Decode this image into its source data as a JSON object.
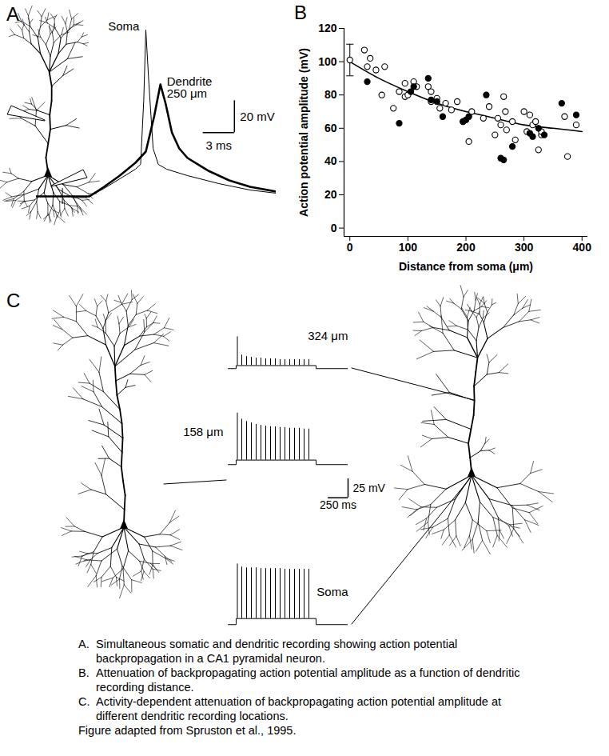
{
  "chart_data": [
    {
      "panel": "A",
      "type": "line",
      "tick_labels": false,
      "xlim": [
        -2.5,
        20.5
      ],
      "ylim": [
        -5,
        110
      ],
      "stimulus_time": 0,
      "series": [
        {
          "name": "Soma",
          "color": "#000000",
          "line_style": "thin",
          "x": [
            -2.5,
            2.6,
            4,
            5.5,
            7,
            7.5,
            7.8,
            8,
            8.3,
            8.7,
            9.2,
            10,
            12,
            15,
            18,
            20.5
          ],
          "values": [
            0,
            0,
            5,
            11,
            17,
            20,
            60,
            104,
            70,
            30,
            20,
            17,
            13,
            8,
            4,
            2
          ]
        },
        {
          "name": "Dendrite\n250 μm",
          "color": "#000000",
          "line_style": "bold",
          "x": [
            -2.5,
            2.6,
            4,
            5.5,
            7,
            8,
            8.8,
            9.4,
            9.9,
            10.5,
            11.2,
            12,
            14,
            16,
            18,
            20.5
          ],
          "values": [
            0,
            0,
            6,
            13,
            21,
            28,
            50,
            70,
            58,
            40,
            30,
            24,
            16,
            10,
            6,
            3
          ]
        }
      ],
      "scale_bar": {
        "x": 3,
        "x_label": "3 ms",
        "y": 20,
        "y_label": "20 mV"
      }
    },
    {
      "panel": "B",
      "type": "scatter",
      "x_label": "Distance from soma (μm)",
      "y_label": "Action potential amplitude (mV)",
      "xlim": [
        -10,
        410
      ],
      "ylim": [
        -5,
        120
      ],
      "xticks": [
        0,
        100,
        200,
        300,
        400
      ],
      "yticks": [
        0,
        20,
        40,
        60,
        80,
        100,
        120
      ],
      "grid": false,
      "series": [
        {
          "type": "line",
          "color": "#000000",
          "line_style": "solid",
          "x": [
            0,
            50,
            100,
            150,
            200,
            250,
            300,
            350,
            400
          ],
          "values": [
            100,
            90,
            82,
            75,
            70,
            66,
            62,
            60,
            58
          ]
        },
        {
          "type": "scatter",
          "marker": "open",
          "color": "#000000",
          "x": [
            25,
            30,
            35,
            45,
            55,
            60,
            75,
            85,
            95,
            95,
            100,
            110,
            115,
            135,
            140,
            140,
            150,
            155,
            165,
            175,
            185,
            195,
            205,
            210,
            230,
            240,
            250,
            255,
            260,
            265,
            268,
            270,
            280,
            285,
            300,
            305,
            310,
            315,
            320,
            325,
            330,
            330,
            370,
            375,
            390
          ],
          "values": [
            107,
            97,
            102,
            95,
            80,
            97,
            72,
            82,
            87,
            79,
            80,
            88,
            85,
            85,
            82,
            76,
            78,
            72,
            75,
            71,
            76,
            64,
            52,
            70,
            66,
            73,
            56,
            66,
            62,
            79,
            70,
            59,
            64,
            53,
            70,
            58,
            68,
            62,
            64,
            47,
            56,
            58,
            67,
            43,
            62
          ]
        },
        {
          "type": "scatter",
          "marker": "filled",
          "color": "#000000",
          "x": [
            30,
            85,
            105,
            110,
            135,
            140,
            150,
            160,
            195,
            200,
            205,
            235,
            260,
            265,
            280,
            310,
            315,
            325,
            335,
            365,
            390
          ],
          "values": [
            88,
            63,
            82,
            85,
            90,
            77,
            76,
            67,
            64,
            65,
            67,
            80,
            42,
            41,
            49,
            57,
            55,
            60,
            56,
            75,
            68
          ]
        },
        {
          "type": "scatter",
          "marker": "open",
          "color": "#000000",
          "x": [
            0
          ],
          "values": [
            101
          ],
          "error": [
            9.5
          ]
        }
      ]
    },
    {
      "panel": "C",
      "type": "spike_train",
      "tick_labels": false,
      "xlim": [
        -100,
        1400
      ],
      "ylim": [
        -5,
        90
      ],
      "baseline": 0,
      "step": [
        0,
        1000
      ],
      "series": [
        {
          "name": "324 μm",
          "color": "#000000",
          "plateau": 4,
          "x": [
            15,
            70,
            130,
            190,
            250,
            310,
            370,
            430,
            490,
            550,
            610,
            670,
            730,
            790,
            850,
            910
          ],
          "values": [
            42,
            18,
            16,
            15,
            14,
            14,
            13,
            13,
            13,
            12,
            12,
            12,
            12,
            12,
            12,
            12
          ]
        },
        {
          "name": "158 μm",
          "color": "#000000",
          "plateau": 6,
          "x": [
            15,
            70,
            130,
            190,
            250,
            310,
            370,
            430,
            490,
            550,
            610,
            670,
            730,
            790,
            850,
            910
          ],
          "values": [
            68,
            60,
            57,
            55,
            53,
            52,
            51,
            50,
            50,
            49,
            49,
            48,
            48,
            48,
            47,
            47
          ]
        },
        {
          "name": "Soma",
          "color": "#000000",
          "plateau": 8,
          "x": [
            15,
            70,
            130,
            190,
            250,
            310,
            370,
            430,
            490,
            550,
            610,
            670,
            730,
            790,
            850,
            910
          ],
          "values": [
            80,
            76,
            75,
            75,
            75,
            74,
            74,
            74,
            74,
            74,
            73,
            73,
            73,
            73,
            73,
            73
          ]
        }
      ],
      "scale_bar": {
        "x": 250,
        "x_label": "250 ms",
        "y": 25,
        "y_label": "25 mV"
      }
    }
  ],
  "caption": {
    "items": [
      {
        "label": "A.",
        "text": "Simultaneous somatic and dendritic recording showing action potential backpropagation in a CA1 pyramidal neuron."
      },
      {
        "label": "B.",
        "text": "Attenuation of backpropagating action potential amplitude as a function of dendritic recording distance."
      },
      {
        "label": "C.",
        "text": "Activity-dependent attenuation of backpropagating action potential amplitude at different dendritic recording locations."
      }
    ],
    "credit": "Figure adapted from Spruston et al., 1995."
  }
}
